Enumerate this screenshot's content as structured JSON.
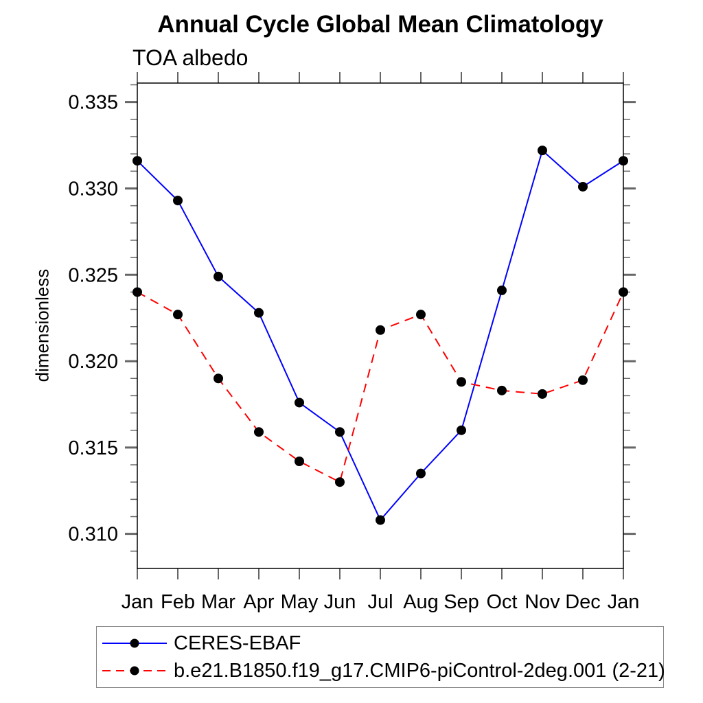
{
  "title": "Annual Cycle Global Mean Climatology",
  "subtitle": "TOA albedo",
  "ylabel": "dimensionless",
  "chart_data": {
    "type": "line",
    "title": "Annual Cycle Global Mean Climatology",
    "subtitle": "TOA albedo",
    "xlabel": "",
    "ylabel": "dimensionless",
    "categories": [
      "Jan",
      "Feb",
      "Mar",
      "Apr",
      "May",
      "Jun",
      "Jul",
      "Aug",
      "Sep",
      "Oct",
      "Nov",
      "Dec",
      "Jan"
    ],
    "series": [
      {
        "name": "CERES-EBAF",
        "color": "#0000ff",
        "line_style": "solid",
        "marker": "circle",
        "marker_color": "#000000",
        "values": [
          0.3316,
          0.3293,
          0.3249,
          0.3228,
          0.3176,
          0.3159,
          0.3108,
          0.3135,
          0.316,
          0.3241,
          0.3322,
          0.3301,
          0.3316
        ]
      },
      {
        "name": "b.e21.B1850.f19_g17.CMIP6-piControl-2deg.001 (2-21)",
        "color": "#ff0000",
        "line_style": "dashed",
        "marker": "circle",
        "marker_color": "#000000",
        "values": [
          0.324,
          0.3227,
          0.319,
          0.3159,
          0.3142,
          0.313,
          0.3218,
          0.3227,
          0.3188,
          0.3183,
          0.3181,
          0.3189,
          0.324
        ]
      }
    ],
    "ylim": [
      0.308,
      0.3361
    ],
    "yticks_major": [
      0.31,
      0.315,
      0.32,
      0.325,
      0.33,
      0.335
    ],
    "ytick_labels": [
      "0.310",
      "0.315",
      "0.320",
      "0.325",
      "0.330",
      "0.335"
    ],
    "ytick_minor_step": 0.001,
    "grid": false,
    "legend_position": "bottom-left",
    "axis_color": "#000000",
    "tick_color": "#666666"
  }
}
